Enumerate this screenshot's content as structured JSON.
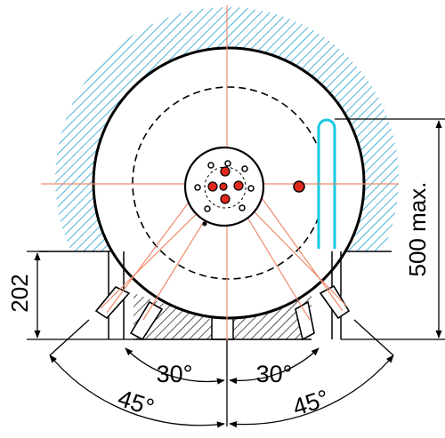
{
  "dimensions": {
    "height_max": "500 max.",
    "offset": "202",
    "inner_angle_left": "30°",
    "inner_angle_right": "30°",
    "outer_angle_left": "45°",
    "outer_angle_right": "45°"
  },
  "colors": {
    "hatch": "#1fa0d0",
    "slot": "#19c6e0",
    "centerline": "#f08a6a",
    "hole": "#e0281c",
    "outline": "#000000"
  }
}
